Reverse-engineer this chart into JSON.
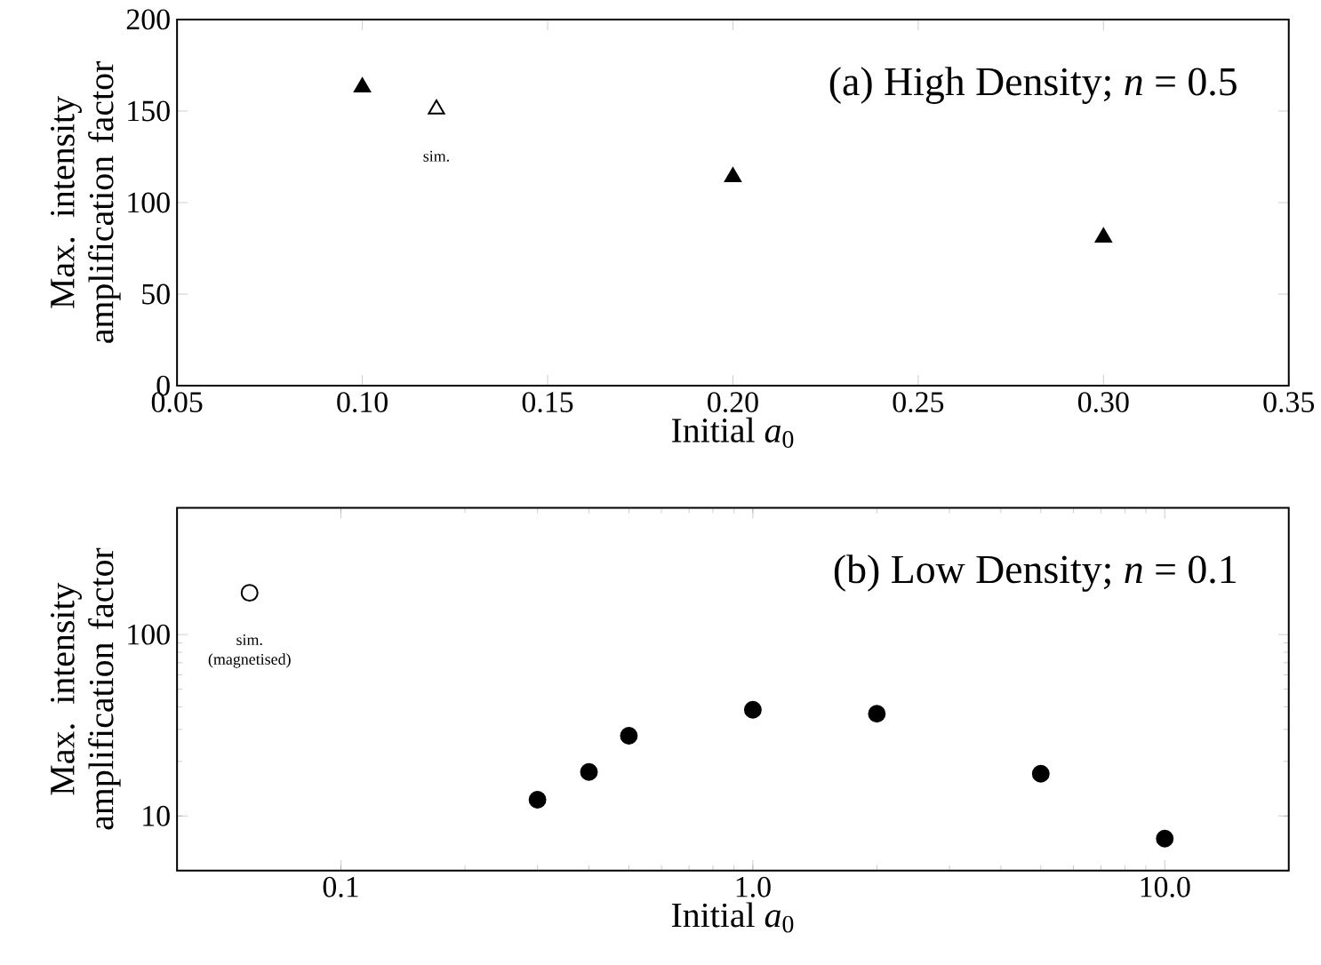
{
  "chart_data": [
    {
      "type": "scatter",
      "title": "(a) High Density; *n* = 0.5",
      "xlabel": "Initial *a*$_{0}$",
      "ylabel": "Max. intensity amplification factor",
      "xlim": [
        0.05,
        0.35
      ],
      "ylim": [
        0,
        200
      ],
      "xticks": [
        {
          "value": 0.05,
          "label": "0.05"
        },
        {
          "value": 0.1,
          "label": "0.10"
        },
        {
          "value": 0.15,
          "label": "0.15"
        },
        {
          "value": 0.2,
          "label": "0.20"
        },
        {
          "value": 0.25,
          "label": "0.25"
        },
        {
          "value": 0.3,
          "label": "0.30"
        },
        {
          "value": 0.35,
          "label": "0.35"
        }
      ],
      "yticks": [
        0,
        50,
        100,
        150,
        200
      ],
      "marker": "triangle",
      "series": [
        {
          "color": "#000000",
          "x": [
            0.1,
            0.2,
            0.3
          ],
          "values": [
            163,
            114,
            81
          ]
        },
        {
          "color": "#000000",
          "x": [
            0.12
          ],
          "values": [
            151
          ]
        }
      ],
      "annotations": [
        {
          "text": "sim.",
          "x": 0.12,
          "y": 151
        }
      ]
    },
    {
      "type": "scatter",
      "title": "(b) Low Density; *n* = 0.1",
      "xlabel": "Initial *a*$_{0}$",
      "ylabel": "Max. intensity amplification factor",
      "log": "xy",
      "xlim": [
        0.04,
        20
      ],
      "ylim": [
        5,
        500
      ],
      "xticks": [
        {
          "value": 0.1,
          "label": "0.1"
        },
        {
          "value": 1,
          "label": "1.0"
        },
        {
          "value": 10,
          "label": "10.0"
        }
      ],
      "yticks": [
        10,
        100
      ],
      "marker": "circle",
      "series": [
        {
          "color": "#000000",
          "x": [
            0.3,
            0.4,
            0.5,
            1,
            2,
            5,
            10
          ],
          "values": [
            12.3,
            17.5,
            27.7,
            38.5,
            36.6,
            17.1,
            7.5
          ]
        },
        {
          "color": "#000000",
          "x": [
            0.06
          ],
          "values": [
            170
          ]
        }
      ],
      "annotations": [
        {
          "text": "sim. (magnetised)",
          "x": 0.06,
          "y": 170
        }
      ]
    }
  ]
}
